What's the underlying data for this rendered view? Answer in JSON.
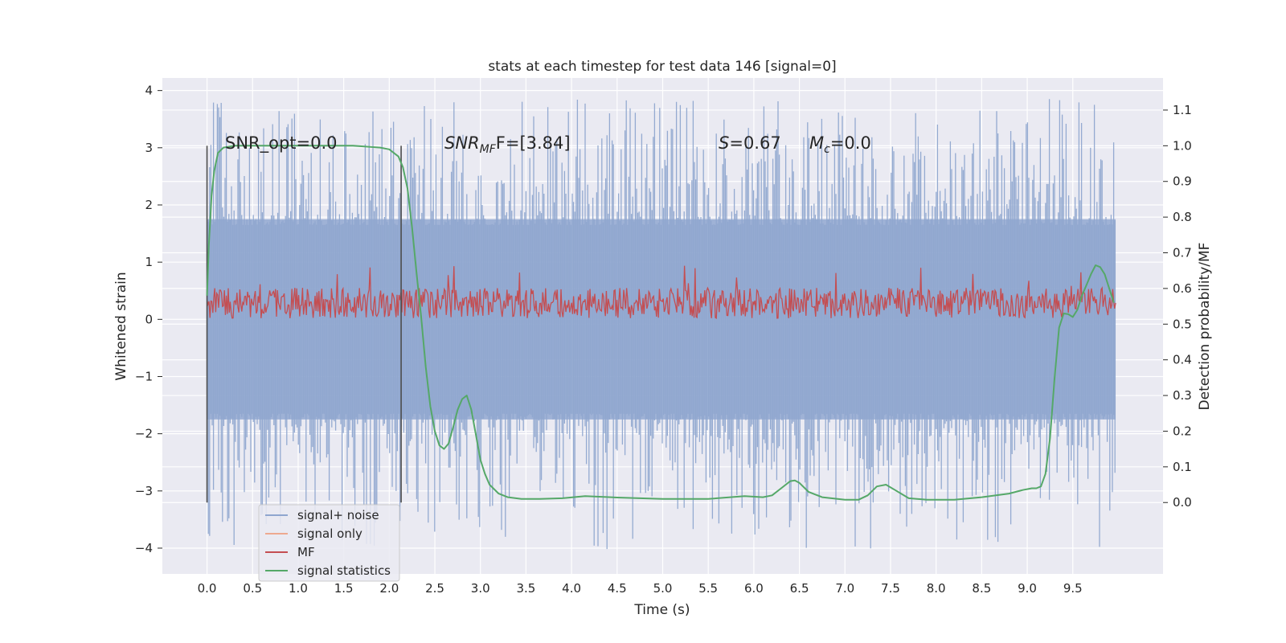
{
  "chart_data": {
    "type": "line",
    "title": "stats at each timestep for test data 146 [signal=0]",
    "xlabel": "Time (s)",
    "ylabel_left": "Whitened strain",
    "ylabel_right": "Detection probability/MF",
    "xlim": [
      -0.49,
      10.49
    ],
    "ylim_left": [
      -4.45,
      4.22
    ],
    "ylim_right": [
      -0.2,
      1.19
    ],
    "grid": true,
    "legend_position": "lower-left",
    "x_ticks": [
      "0.0",
      "0.5",
      "1.0",
      "1.5",
      "2.0",
      "2.5",
      "3.0",
      "3.5",
      "4.0",
      "4.5",
      "5.0",
      "5.5",
      "6.0",
      "6.5",
      "7.0",
      "7.5",
      "8.0",
      "8.5",
      "9.0",
      "9.5"
    ],
    "y_ticks_left": [
      "4",
      "3",
      "2",
      "1",
      "0",
      "−1",
      "−2",
      "−3",
      "−4"
    ],
    "y_ticks_right": [
      "1.1",
      "1.0",
      "0.9",
      "0.8",
      "0.7",
      "0.6",
      "0.5",
      "0.4",
      "0.3",
      "0.2",
      "0.1",
      "0.0"
    ],
    "annotations": {
      "snr_opt": "SNR_opt=0.0",
      "snr_mf_label": "SNR",
      "snr_mf_sub": "MF",
      "snr_mf_rest": "F=[3.84]",
      "s_label": "S",
      "s_rest": "=0.67",
      "mc_label": "M",
      "mc_sub": "c",
      "mc_rest": "=0.0"
    },
    "vertical_lines_x": [
      0.0,
      2.13
    ],
    "legend": [
      "signal+ noise",
      "signal only",
      "MF",
      "signal statistics"
    ],
    "colors": {
      "noise": "#8fa6cf",
      "signal_only": "#eea98f",
      "mf": "#c44e52",
      "stats": "#55a868",
      "vline": "#4c4c4c",
      "axes_bg": "#eaeaf2",
      "grid": "#ffffff"
    },
    "series": [
      {
        "name": "signal statistics",
        "axis": "right",
        "x": [
          0.0,
          0.02,
          0.05,
          0.08,
          0.12,
          0.18,
          0.3,
          0.5,
          0.8,
          1.2,
          1.6,
          1.9,
          2.0,
          2.1,
          2.15,
          2.2,
          2.25,
          2.3,
          2.35,
          2.4,
          2.45,
          2.5,
          2.55,
          2.6,
          2.65,
          2.7,
          2.75,
          2.8,
          2.85,
          2.9,
          2.95,
          3.0,
          3.05,
          3.1,
          3.2,
          3.3,
          3.45,
          3.65,
          3.9,
          4.15,
          4.5,
          5.0,
          5.5,
          5.9,
          6.1,
          6.2,
          6.3,
          6.4,
          6.45,
          6.5,
          6.6,
          6.75,
          7.0,
          7.15,
          7.25,
          7.35,
          7.45,
          7.55,
          7.7,
          7.9,
          8.2,
          8.5,
          8.8,
          8.95,
          9.05,
          9.1,
          9.15,
          9.2,
          9.25,
          9.3,
          9.35,
          9.4,
          9.45,
          9.5,
          9.55,
          9.6,
          9.65,
          9.7,
          9.75,
          9.8,
          9.85,
          9.9,
          9.95
        ],
        "values": [
          0.58,
          0.72,
          0.86,
          0.93,
          0.98,
          0.995,
          1.0,
          1.0,
          1.0,
          1.0,
          1.0,
          0.995,
          0.99,
          0.97,
          0.94,
          0.88,
          0.77,
          0.64,
          0.52,
          0.38,
          0.27,
          0.2,
          0.16,
          0.15,
          0.165,
          0.21,
          0.26,
          0.29,
          0.3,
          0.26,
          0.19,
          0.12,
          0.08,
          0.05,
          0.025,
          0.015,
          0.01,
          0.01,
          0.012,
          0.018,
          0.014,
          0.01,
          0.01,
          0.018,
          0.015,
          0.02,
          0.04,
          0.06,
          0.062,
          0.055,
          0.03,
          0.015,
          0.008,
          0.008,
          0.02,
          0.045,
          0.05,
          0.035,
          0.012,
          0.008,
          0.008,
          0.015,
          0.025,
          0.035,
          0.04,
          0.04,
          0.045,
          0.08,
          0.18,
          0.35,
          0.49,
          0.53,
          0.528,
          0.52,
          0.54,
          0.58,
          0.61,
          0.64,
          0.665,
          0.66,
          0.64,
          0.6,
          0.56
        ]
      },
      {
        "name": "MF",
        "axis": "left",
        "x_range": [
          0.0,
          9.97
        ],
        "baseline": 0.27,
        "band_low": 0.02,
        "band_high": 0.55,
        "spike_max": 0.98
      },
      {
        "name": "signal+ noise",
        "axis": "left",
        "x_range": [
          0.0,
          9.97
        ],
        "band_low": -1.75,
        "band_high": 1.75,
        "spike_min": -4.02,
        "spike_max": 3.85
      },
      {
        "name": "signal only",
        "axis": "left",
        "values": []
      }
    ]
  }
}
